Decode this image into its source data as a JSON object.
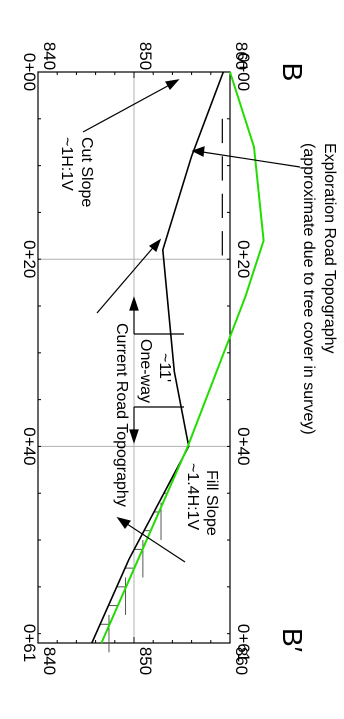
{
  "section": {
    "start_label": "B",
    "end_label": "B′"
  },
  "axes": {
    "station_ticks": [
      "0+00",
      "0+20",
      "0+40",
      "0+61"
    ],
    "station_values_ft": [
      0,
      20,
      40,
      61
    ],
    "elevation_ticks": [
      "840",
      "850",
      "860"
    ],
    "elevation_values_ft": [
      840,
      850,
      860
    ],
    "elevation_range_ft": [
      840,
      860
    ],
    "station_range_ft": [
      0,
      61
    ],
    "grid": true
  },
  "annotations": {
    "exploration_title": "Exploration Road Topography",
    "exploration_note": "(approximate due to tree cover in survey)",
    "cut_slope_title": "Cut Slope",
    "cut_slope_ratio": "~1H:1V",
    "fill_slope_title": "Fill Slope",
    "fill_slope_ratio": "~1.4H:1V",
    "width_value": "~11'",
    "width_label": "One-way",
    "current_road": "Current Road Topography"
  },
  "profiles": {
    "current_road": {
      "color": "#000000",
      "points": [
        [
          0,
          859.3
        ],
        [
          9,
          856.0
        ],
        [
          19,
          853.0
        ],
        [
          32,
          854.2
        ],
        [
          40,
          855.7
        ],
        [
          52,
          849.5
        ],
        [
          61,
          845.6
        ]
      ]
    },
    "exploration_road": {
      "color": "#22dd00",
      "points": [
        [
          0,
          860.0
        ],
        [
          8,
          862.5
        ],
        [
          18,
          863.5
        ],
        [
          24,
          861.6
        ],
        [
          40,
          855.6
        ],
        [
          61,
          846.6
        ]
      ]
    }
  },
  "colors": {
    "grid": "#b0b0b0",
    "frame": "#000000",
    "exploration_line": "#22dd00",
    "hatch": "#555555"
  }
}
